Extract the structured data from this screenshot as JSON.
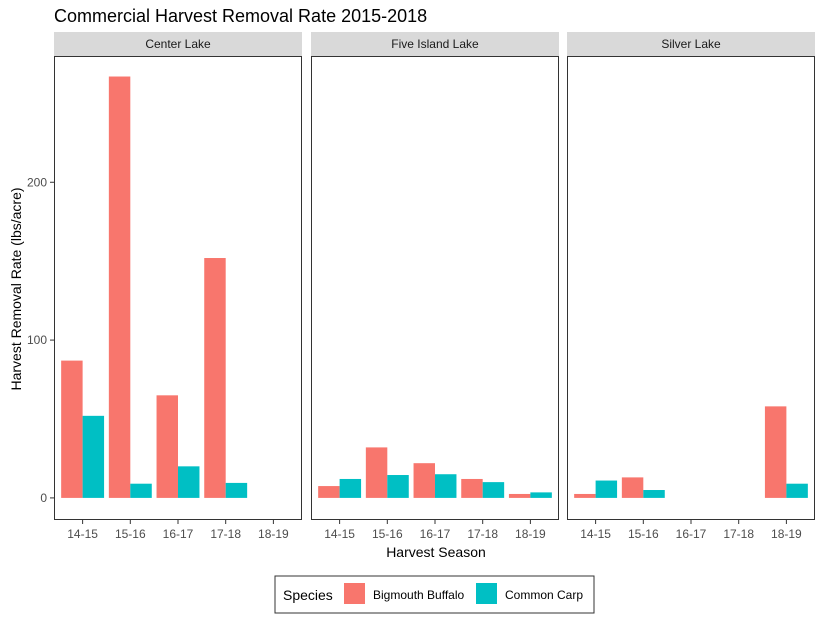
{
  "chart_data": {
    "type": "bar",
    "title": "Commercial Harvest Removal Rate 2015-2018",
    "xlabel": "Harvest Season",
    "ylabel": "Harvest Removal Rate (lbs/acre)",
    "categories": [
      "14-15",
      "15-16",
      "16-17",
      "17-18",
      "18-19"
    ],
    "yticks": [
      0,
      100,
      200
    ],
    "ylim": [
      -14,
      280
    ],
    "legend": {
      "title": "Species",
      "position": "bottom"
    },
    "series": [
      {
        "name": "Bigmouth Buffalo",
        "color": "#F8766D"
      },
      {
        "name": "Common Carp",
        "color": "#00BFC4"
      }
    ],
    "panels": [
      {
        "name": "Center Lake",
        "values": {
          "Bigmouth Buffalo": [
            87,
            267,
            65,
            152,
            null
          ],
          "Common Carp": [
            52,
            9,
            20,
            9.5,
            null
          ]
        }
      },
      {
        "name": "Five Island Lake",
        "values": {
          "Bigmouth Buffalo": [
            7.5,
            32,
            22,
            12,
            2.5
          ],
          "Common Carp": [
            12,
            14.5,
            15,
            10,
            3.5
          ]
        }
      },
      {
        "name": "Silver Lake",
        "values": {
          "Bigmouth Buffalo": [
            2.5,
            13,
            null,
            null,
            58
          ],
          "Common Carp": [
            11,
            5,
            null,
            null,
            9
          ]
        }
      }
    ]
  }
}
